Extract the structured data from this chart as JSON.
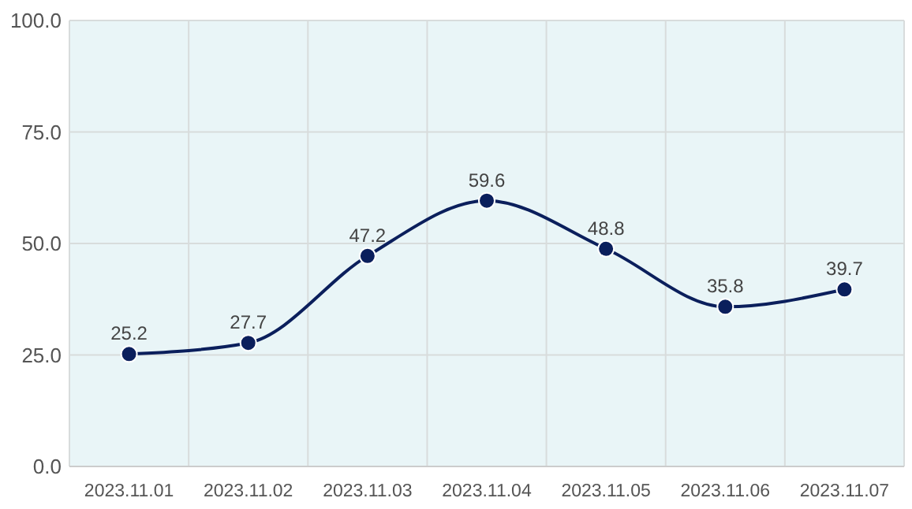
{
  "chart_data": {
    "type": "line",
    "categories": [
      "2023.11.01",
      "2023.11.02",
      "2023.11.03",
      "2023.11.04",
      "2023.11.05",
      "2023.11.06",
      "2023.11.07"
    ],
    "series": [
      {
        "color": "#0b1f5c",
        "values": [
          25.2,
          27.7,
          47.2,
          59.6,
          48.8,
          35.8,
          39.7
        ]
      }
    ],
    "ylim": [
      0,
      100
    ],
    "yticks": [
      {
        "value": 0,
        "label": "0.0"
      },
      {
        "value": 25,
        "label": "25.0"
      },
      {
        "value": 50,
        "label": "50.0"
      },
      {
        "value": 75,
        "label": "75.0"
      },
      {
        "value": 100,
        "label": "100.0"
      }
    ],
    "grid": true,
    "marker": "circle",
    "line_style": "solid",
    "data_labels": true
  }
}
